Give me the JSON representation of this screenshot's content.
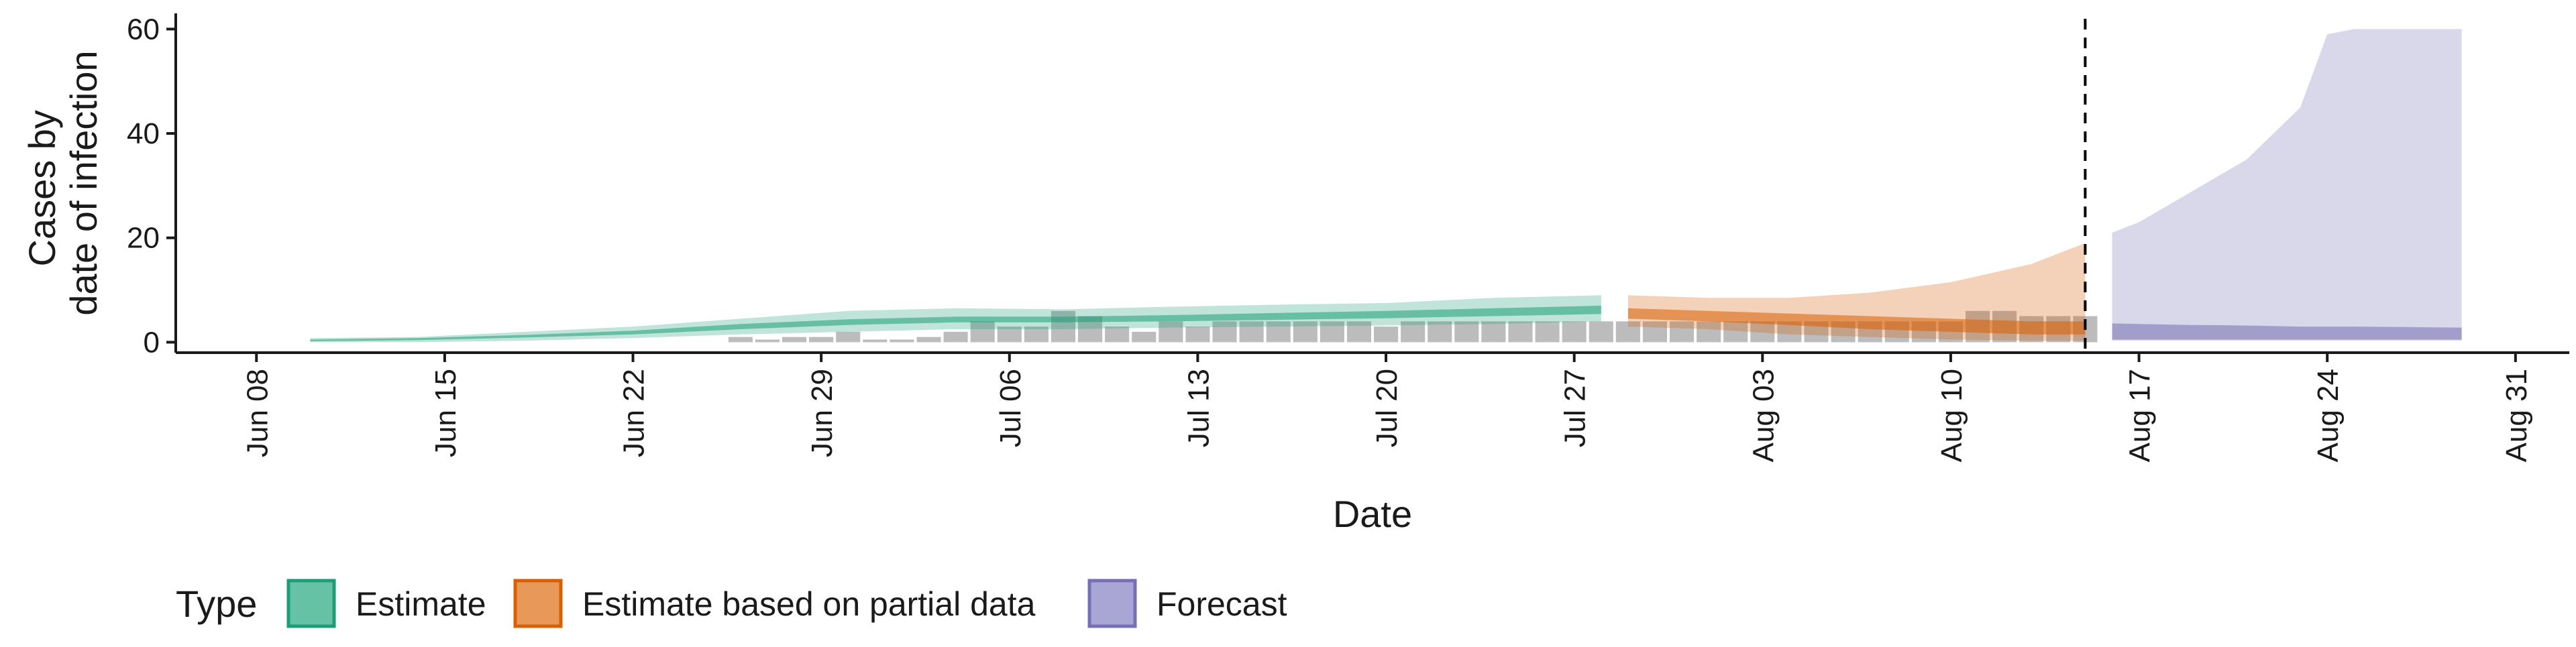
{
  "chart_data": {
    "type": "area",
    "xlabel": "Date",
    "ylabel_lines": [
      "Cases by",
      "date of infection"
    ],
    "x_range": [
      "2020-06-05",
      "2020-09-02"
    ],
    "ylim": [
      -2,
      63
    ],
    "yticks": [
      0,
      20,
      40,
      60
    ],
    "xticks": [
      {
        "date": "2020-06-08",
        "label": "Jun 08"
      },
      {
        "date": "2020-06-15",
        "label": "Jun 15"
      },
      {
        "date": "2020-06-22",
        "label": "Jun 22"
      },
      {
        "date": "2020-06-29",
        "label": "Jun 29"
      },
      {
        "date": "2020-07-06",
        "label": "Jul 06"
      },
      {
        "date": "2020-07-13",
        "label": "Jul 13"
      },
      {
        "date": "2020-07-20",
        "label": "Jul 20"
      },
      {
        "date": "2020-07-27",
        "label": "Jul 27"
      },
      {
        "date": "2020-08-03",
        "label": "Aug 03"
      },
      {
        "date": "2020-08-10",
        "label": "Aug 10"
      },
      {
        "date": "2020-08-17",
        "label": "Aug 17"
      },
      {
        "date": "2020-08-24",
        "label": "Aug 24"
      },
      {
        "date": "2020-08-31",
        "label": "Aug 31"
      }
    ],
    "vline_date": "2020-08-15",
    "observed_cases": {
      "start_date": "2020-06-26",
      "values": [
        1,
        0,
        1,
        1,
        2,
        0,
        0,
        1,
        2,
        4,
        3,
        3,
        6,
        5,
        3,
        2,
        4,
        3,
        4,
        4,
        4,
        4,
        4,
        4,
        3,
        4,
        4,
        4,
        4,
        4,
        4,
        4,
        4,
        4,
        4,
        4,
        4,
        4,
        4,
        4,
        4,
        4,
        4,
        4,
        4,
        4,
        6,
        6,
        5,
        5,
        5
      ]
    },
    "series": [
      {
        "name": "Estimate",
        "color": "#1b9e77",
        "x": [
          "2020-06-10",
          "2020-06-14",
          "2020-06-18",
          "2020-06-22",
          "2020-06-26",
          "2020-06-30",
          "2020-07-04",
          "2020-07-08",
          "2020-07-12",
          "2020-07-16",
          "2020-07-20",
          "2020-07-24",
          "2020-07-28"
        ],
        "outer_lower": [
          0,
          0,
          0.3,
          0.8,
          1.5,
          2,
          2.5,
          2.5,
          2.8,
          3,
          3.2,
          3.5,
          4
        ],
        "outer_upper": [
          0.8,
          1,
          2,
          3,
          4.5,
          6,
          6.5,
          6.3,
          6.8,
          7.2,
          7.5,
          8.5,
          9
        ],
        "inner_lower": [
          0.2,
          0.4,
          0.9,
          1.5,
          2.5,
          3.3,
          3.8,
          3.8,
          4,
          4.3,
          4.6,
          5,
          5.4
        ],
        "inner_upper": [
          0.5,
          0.8,
          1.4,
          2.2,
          3.5,
          4.4,
          4.9,
          4.9,
          5.2,
          5.6,
          6,
          6.5,
          7
        ]
      },
      {
        "name": "Estimate based on partial data",
        "color": "#d95f02",
        "x": [
          "2020-07-29",
          "2020-08-01",
          "2020-08-04",
          "2020-08-07",
          "2020-08-10",
          "2020-08-13",
          "2020-08-15"
        ],
        "outer_lower": [
          3,
          2.5,
          1.5,
          1,
          0.5,
          0.3,
          0.3
        ],
        "outer_upper": [
          9,
          8.5,
          8.5,
          9.5,
          11.5,
          15,
          19
        ],
        "inner_lower": [
          4.5,
          4,
          3.3,
          2.5,
          2,
          1.5,
          1.5
        ],
        "inner_upper": [
          6.5,
          6,
          5.5,
          5,
          4.5,
          4,
          4
        ]
      },
      {
        "name": "Forecast",
        "color": "#7570b3",
        "x": [
          "2020-08-16",
          "2020-08-17",
          "2020-08-19",
          "2020-08-21",
          "2020-08-23",
          "2020-08-24",
          "2020-08-25",
          "2020-08-29"
        ],
        "outer_lower": [
          0.3,
          0.3,
          0.3,
          0.3,
          0.3,
          0.3,
          0.3,
          0.3
        ],
        "outer_upper": [
          21,
          23,
          29,
          35,
          45,
          59,
          60,
          60
        ],
        "inner_lower": [
          0.5,
          0.5,
          0.5,
          0.5,
          0.5,
          0.5,
          0.5,
          0.5
        ],
        "inner_upper": [
          3.6,
          3.5,
          3.3,
          3.2,
          3,
          3,
          3,
          2.8
        ]
      }
    ],
    "legend": {
      "title": "Type",
      "position": "bottom",
      "items": [
        {
          "label": "Estimate",
          "fill": "#66c2a5",
          "border": "#1b9e77"
        },
        {
          "label": "Estimate based on partial data",
          "fill": "#e8995a",
          "border": "#d95f02"
        },
        {
          "label": "Forecast",
          "fill": "#a9a6d6",
          "border": "#7570b3"
        }
      ]
    },
    "grid": false
  }
}
